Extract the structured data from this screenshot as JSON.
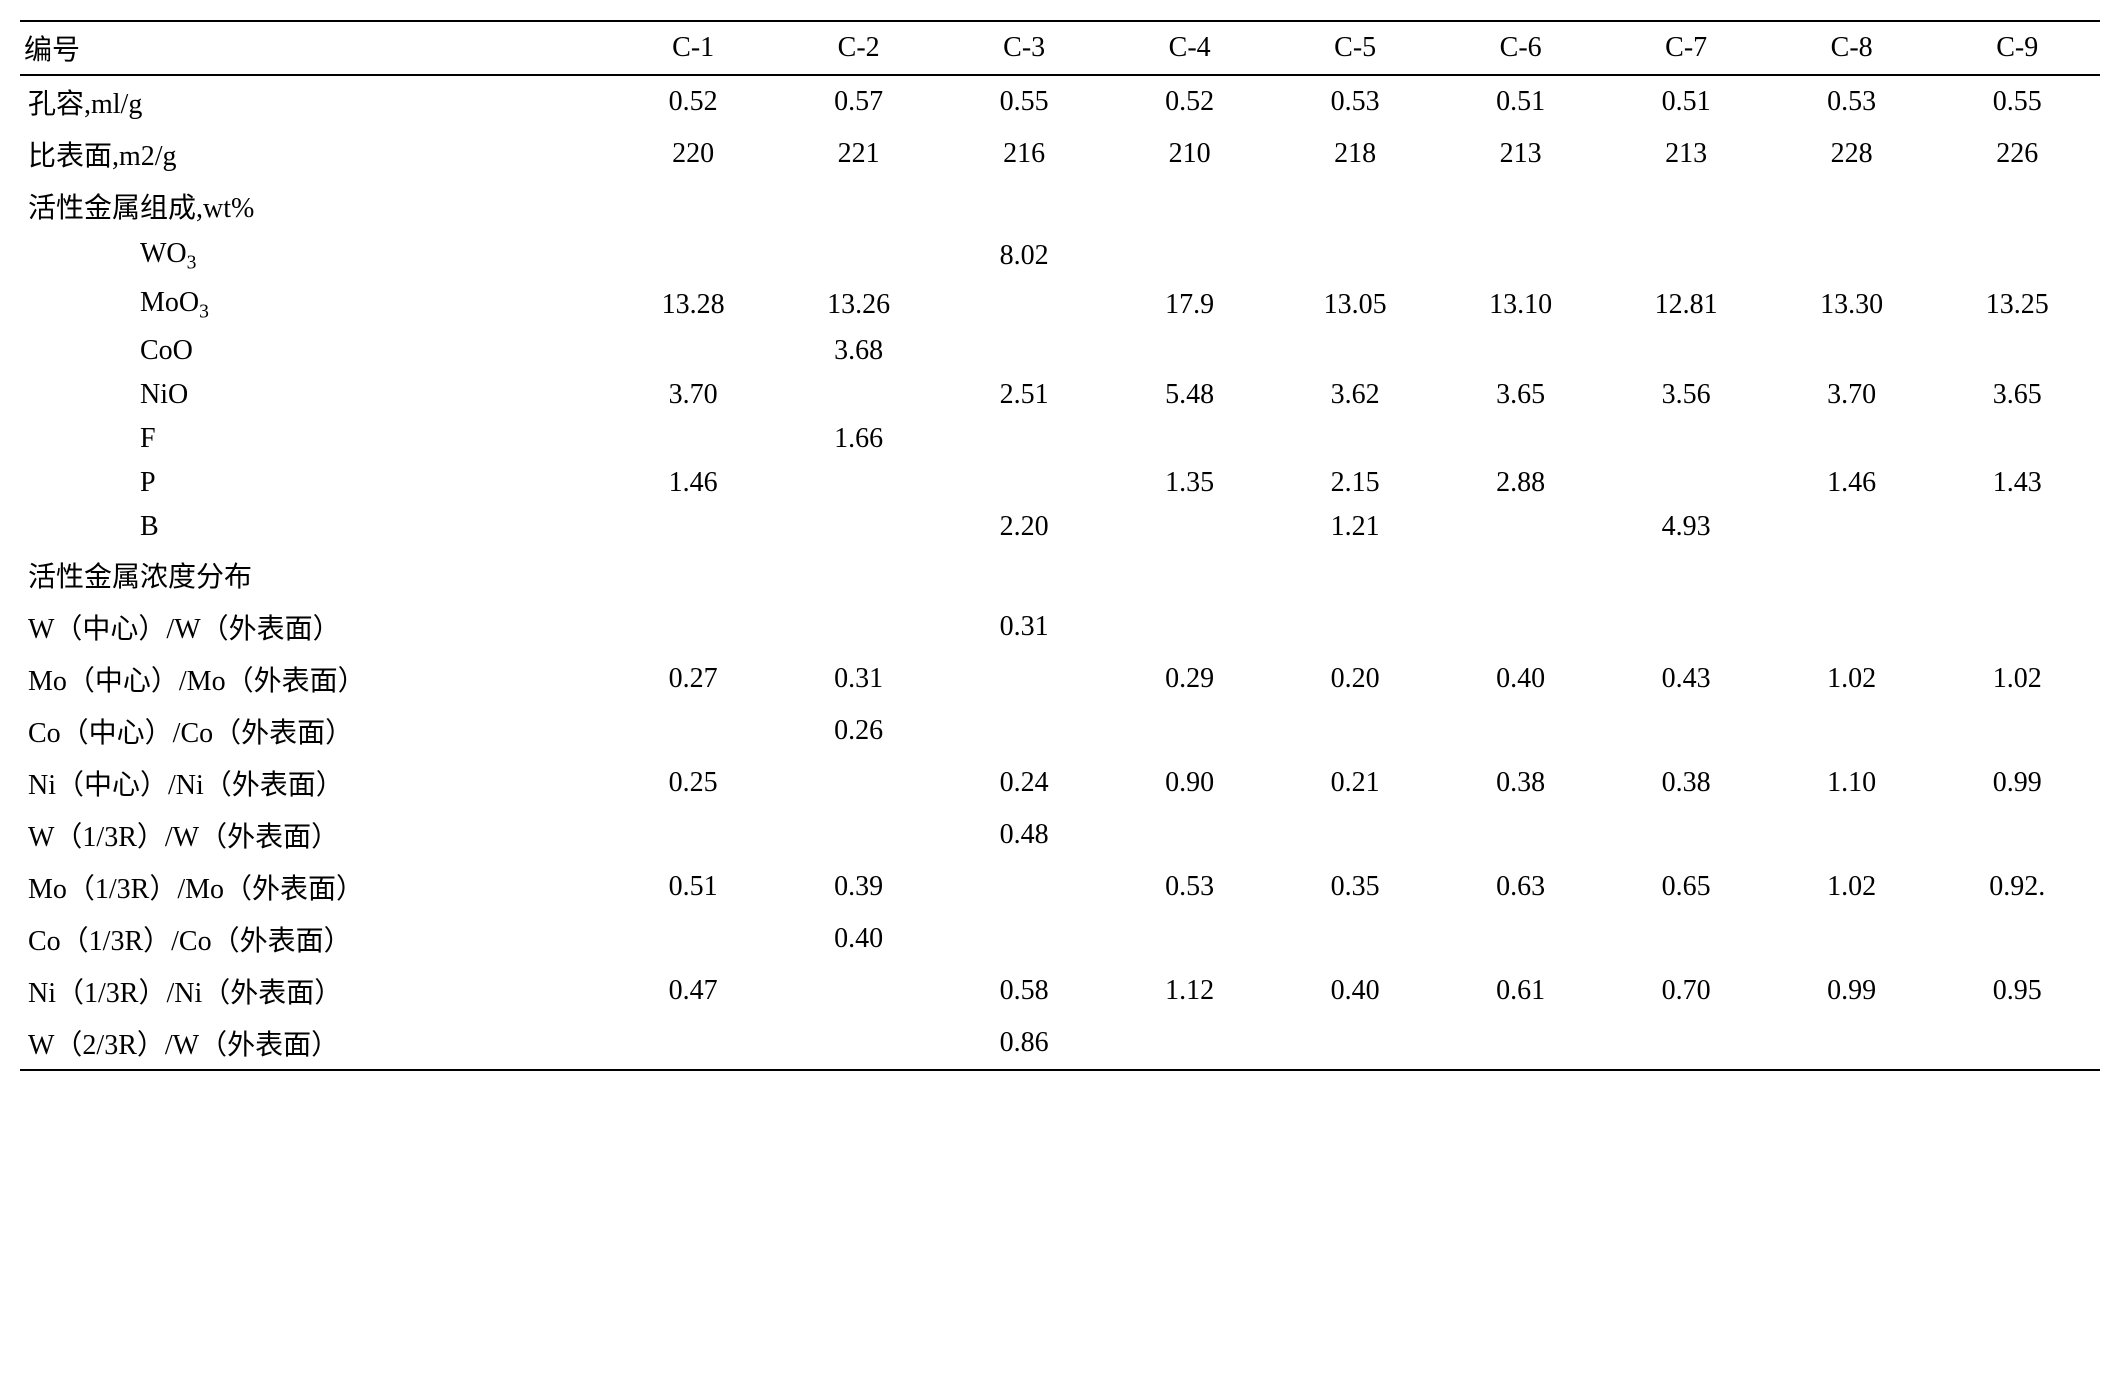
{
  "table": {
    "font_size_pt": 21,
    "text_color": "#000000",
    "background_color": "#ffffff",
    "border_color": "#000000",
    "columns": [
      "编号",
      "C-1",
      "C-2",
      "C-3",
      "C-4",
      "C-5",
      "C-6",
      "C-7",
      "C-8",
      "C-9"
    ],
    "rows": [
      {
        "label": "孔容,ml/g",
        "indent": 0,
        "cells": [
          "0.52",
          "0.57",
          "0.55",
          "0.52",
          "0.53",
          "0.51",
          "0.51",
          "0.53",
          "0.55"
        ]
      },
      {
        "label": "比表面,m2/g",
        "indent": 0,
        "cells": [
          "220",
          "221",
          "216",
          "210",
          "218",
          "213",
          "213",
          "228",
          "226"
        ]
      },
      {
        "label": "活性金属组成,wt%",
        "indent": 0,
        "cells": [
          "",
          "",
          "",
          "",
          "",
          "",
          "",
          "",
          ""
        ]
      },
      {
        "label": "WO₃",
        "indent": 1,
        "cells": [
          "",
          "",
          "8.02",
          "",
          "",
          "",
          "",
          "",
          ""
        ]
      },
      {
        "label": "MoO₃",
        "indent": 1,
        "cells": [
          "13.28",
          "13.26",
          "",
          "17.9",
          "13.05",
          "13.10",
          "12.81",
          "13.30",
          "13.25"
        ]
      },
      {
        "label": "CoO",
        "indent": 1,
        "cells": [
          "",
          "3.68",
          "",
          "",
          "",
          "",
          "",
          "",
          ""
        ]
      },
      {
        "label": "NiO",
        "indent": 1,
        "cells": [
          "3.70",
          "",
          "2.51",
          "5.48",
          "3.62",
          "3.65",
          "3.56",
          "3.70",
          "3.65"
        ]
      },
      {
        "label": "F",
        "indent": 1,
        "cells": [
          "",
          "1.66",
          "",
          "",
          "",
          "",
          "",
          "",
          ""
        ]
      },
      {
        "label": "P",
        "indent": 1,
        "cells": [
          "1.46",
          "",
          "",
          "1.35",
          "2.15",
          "2.88",
          "",
          "1.46",
          "1.43"
        ]
      },
      {
        "label": "B",
        "indent": 1,
        "cells": [
          "",
          "",
          "2.20",
          "",
          "1.21",
          "",
          "4.93",
          "",
          ""
        ]
      },
      {
        "label": "活性金属浓度分布",
        "indent": 0,
        "cells": [
          "",
          "",
          "",
          "",
          "",
          "",
          "",
          "",
          ""
        ]
      },
      {
        "label": "W（中心）/W（外表面）",
        "indent": 0,
        "cells": [
          "",
          "",
          "0.31",
          "",
          "",
          "",
          "",
          "",
          ""
        ]
      },
      {
        "label": "Mo（中心）/Mo（外表面）",
        "indent": 0,
        "cells": [
          "0.27",
          "0.31",
          "",
          "0.29",
          "0.20",
          "0.40",
          "0.43",
          "1.02",
          "1.02"
        ]
      },
      {
        "label": "Co（中心）/Co（外表面）",
        "indent": 0,
        "cells": [
          "",
          "0.26",
          "",
          "",
          "",
          "",
          "",
          "",
          ""
        ]
      },
      {
        "label": "Ni（中心）/Ni（外表面）",
        "indent": 0,
        "cells": [
          "0.25",
          "",
          "0.24",
          "0.90",
          "0.21",
          "0.38",
          "0.38",
          "1.10",
          "0.99"
        ]
      },
      {
        "label": "W（1/3R）/W（外表面）",
        "indent": 0,
        "cells": [
          "",
          "",
          "0.48",
          "",
          "",
          "",
          "",
          "",
          ""
        ]
      },
      {
        "label": "Mo（1/3R）/Mo（外表面）",
        "indent": 0,
        "cells": [
          "0.51",
          "0.39",
          "",
          "0.53",
          "0.35",
          "0.63",
          "0.65",
          "1.02",
          "0.92."
        ]
      },
      {
        "label": "Co（1/3R）/Co（外表面）",
        "indent": 0,
        "cells": [
          "",
          "0.40",
          "",
          "",
          "",
          "",
          "",
          "",
          ""
        ]
      },
      {
        "label": "Ni（1/3R）/Ni（外表面）",
        "indent": 0,
        "cells": [
          "0.47",
          "",
          "0.58",
          "1.12",
          "0.40",
          "0.61",
          "0.70",
          "0.99",
          "0.95"
        ]
      },
      {
        "label": "W（2/3R）/W（外表面）",
        "indent": 0,
        "cells": [
          "",
          "",
          "0.86",
          "",
          "",
          "",
          "",
          "",
          ""
        ]
      }
    ]
  }
}
